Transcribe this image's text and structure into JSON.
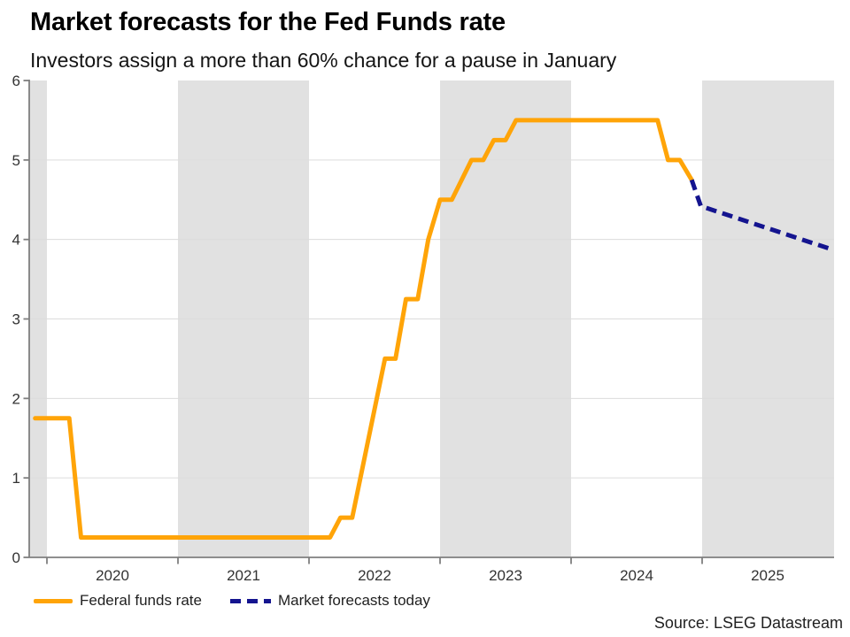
{
  "chart_data": {
    "type": "line",
    "title": "Market forecasts for the Fed Funds rate",
    "subtitle": "Investors assign a more than 60% chance for a pause in January",
    "xlabel": "",
    "ylabel": "",
    "x_axis": {
      "range_years": [
        2019.865,
        2026.01
      ],
      "ticks": [
        2020,
        2021,
        2022,
        2023,
        2024,
        2025
      ],
      "tick_labels": [
        "2020",
        "2021",
        "2022",
        "2023",
        "2024",
        "2025"
      ]
    },
    "y_axis": {
      "range": [
        0,
        6
      ],
      "ticks": [
        0,
        1,
        2,
        3,
        4,
        5,
        6
      ],
      "tick_labels": [
        "0",
        "1",
        "2",
        "3",
        "4",
        "5",
        "6"
      ],
      "gridlines": [
        1,
        2,
        3,
        4,
        5
      ]
    },
    "shaded_year_bands": [
      [
        2019.865,
        2020.0
      ],
      [
        2021.0,
        2022.0
      ],
      [
        2023.0,
        2024.0
      ],
      [
        2025.0,
        2026.01
      ]
    ],
    "grid": "horizontal",
    "legend_position": "bottom-left",
    "colors": {
      "band": "#E1E1E1",
      "grid": "#DCDCDC",
      "axis": "#7F7F7F",
      "tick_text": "#333333"
    },
    "series": [
      {
        "name": "Federal funds rate",
        "color": "#FFA408",
        "style": "solid",
        "points": [
          [
            2019.91,
            1.75
          ],
          [
            2020.17,
            1.75
          ],
          [
            2020.26,
            0.25
          ],
          [
            2022.16,
            0.25
          ],
          [
            2022.24,
            0.5
          ],
          [
            2022.33,
            0.5
          ],
          [
            2022.58,
            2.5
          ],
          [
            2022.66,
            2.5
          ],
          [
            2022.74,
            3.25
          ],
          [
            2022.83,
            3.25
          ],
          [
            2022.91,
            4.0
          ],
          [
            2023.0,
            4.5
          ],
          [
            2023.09,
            4.5
          ],
          [
            2023.24,
            5.0
          ],
          [
            2023.33,
            5.0
          ],
          [
            2023.41,
            5.25
          ],
          [
            2023.5,
            5.25
          ],
          [
            2023.58,
            5.5
          ],
          [
            2024.66,
            5.5
          ],
          [
            2024.74,
            5.0
          ],
          [
            2024.83,
            5.0
          ],
          [
            2024.92,
            4.75
          ]
        ]
      },
      {
        "name": "Market forecasts today",
        "color": "#14148F",
        "style": "dashed",
        "points": [
          [
            2024.92,
            4.75
          ],
          [
            2024.99,
            4.42
          ],
          [
            2026.0,
            3.87
          ]
        ]
      }
    ]
  },
  "source": "Source: LSEG Datastream"
}
